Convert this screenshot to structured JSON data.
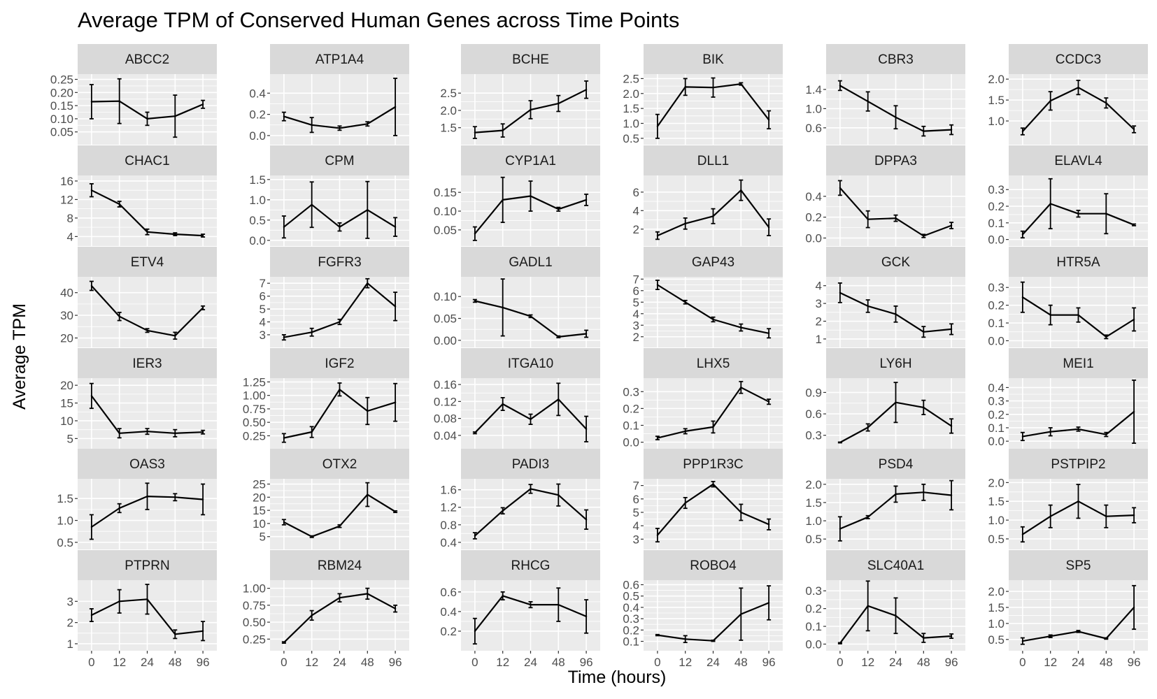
{
  "chart_data": {
    "type": "line",
    "title": "Average TPM of Conserved Human Genes across Time Points",
    "xlabel": "Time (hours)",
    "ylabel": "Average TPM",
    "x": [
      "0",
      "12",
      "24",
      "48",
      "96"
    ],
    "grid": true,
    "layout": "facet-wrap 6 columns x 6 rows",
    "colors": {
      "panel_bg": "#ebebeb",
      "strip_bg": "#d9d9d9",
      "grid": "#ffffff",
      "line": "#000000",
      "tick_text": "#4d4d4d"
    },
    "panels": [
      {
        "name": "ABCC2",
        "ylim": [
          0.02,
          0.27
        ],
        "yticks": [
          0.05,
          0.1,
          0.15,
          0.2,
          0.25
        ],
        "ytick_labels": [
          "0.05",
          "0.10",
          "0.15",
          "0.20",
          "0.25"
        ],
        "values": [
          0.165,
          0.167,
          0.1,
          0.11,
          0.155
        ],
        "err": [
          0.065,
          0.085,
          0.025,
          0.08,
          0.015
        ]
      },
      {
        "name": "ATP1A4",
        "ylim": [
          -0.04,
          0.58
        ],
        "yticks": [
          0.0,
          0.2,
          0.4
        ],
        "ytick_labels": [
          "0.0",
          "0.2",
          "0.4"
        ],
        "values": [
          0.18,
          0.1,
          0.07,
          0.11,
          0.27
        ],
        "err": [
          0.04,
          0.07,
          0.02,
          0.02,
          0.27
        ]
      },
      {
        "name": "BCHE",
        "ylim": [
          1.15,
          3.05
        ],
        "yticks": [
          1.5,
          2.0,
          2.5
        ],
        "ytick_labels": [
          "1.5",
          "2.0",
          "2.5"
        ],
        "values": [
          1.36,
          1.42,
          2.02,
          2.2,
          2.6
        ],
        "err": [
          0.17,
          0.19,
          0.26,
          0.23,
          0.25
        ]
      },
      {
        "name": "BIK",
        "ylim": [
          0.45,
          2.65
        ],
        "yticks": [
          0.5,
          1.0,
          1.5,
          2.0,
          2.5
        ],
        "ytick_labels": [
          "0.5",
          "1.0",
          "1.5",
          "2.0",
          "2.5"
        ],
        "values": [
          0.9,
          2.22,
          2.2,
          2.32,
          1.12
        ],
        "err": [
          0.4,
          0.28,
          0.32,
          0.04,
          0.3
        ]
      },
      {
        "name": "CBR3",
        "ylim": [
          0.35,
          1.72
        ],
        "yticks": [
          0.6,
          1.0,
          1.4
        ],
        "ytick_labels": [
          "0.6",
          "1.0",
          "1.4"
        ],
        "values": [
          1.48,
          1.15,
          0.82,
          0.53,
          0.56
        ],
        "err": [
          0.1,
          0.2,
          0.24,
          0.1,
          0.1
        ]
      },
      {
        "name": "CCDC3",
        "ylim": [
          0.55,
          2.12
        ],
        "yticks": [
          1.0,
          1.5,
          2.0
        ],
        "ytick_labels": [
          "1.0",
          "1.5",
          "2.0"
        ],
        "values": [
          0.75,
          1.48,
          1.8,
          1.43,
          0.8
        ],
        "err": [
          0.08,
          0.22,
          0.17,
          0.12,
          0.08
        ]
      },
      {
        "name": "CHAC1",
        "ylim": [
          3.0,
          17.2
        ],
        "yticks": [
          4,
          8,
          12,
          16
        ],
        "ytick_labels": [
          "4",
          "8",
          "12",
          "16"
        ],
        "values": [
          14.0,
          11.0,
          5.0,
          4.5,
          4.2
        ],
        "err": [
          1.4,
          0.6,
          0.6,
          0.3,
          0.3
        ]
      },
      {
        "name": "CPM",
        "ylim": [
          -0.02,
          1.6
        ],
        "yticks": [
          0.0,
          0.5,
          1.0,
          1.5
        ],
        "ytick_labels": [
          "0.0",
          "0.5",
          "1.0",
          "1.5"
        ],
        "values": [
          0.33,
          0.88,
          0.33,
          0.75,
          0.33
        ],
        "err": [
          0.27,
          0.56,
          0.1,
          0.7,
          0.23
        ]
      },
      {
        "name": "CYP1A1",
        "ylim": [
          0.02,
          0.195
        ],
        "yticks": [
          0.05,
          0.1,
          0.15
        ],
        "ytick_labels": [
          "0.05",
          "0.10",
          "0.15"
        ],
        "values": [
          0.04,
          0.13,
          0.14,
          0.105,
          0.13
        ],
        "err": [
          0.018,
          0.06,
          0.04,
          0.005,
          0.015
        ]
      },
      {
        "name": "DLL1",
        "ylim": [
          0.7,
          7.8
        ],
        "yticks": [
          2,
          4,
          6
        ],
        "ytick_labels": [
          "2",
          "4",
          "6"
        ],
        "values": [
          1.3,
          2.6,
          3.4,
          6.2,
          2.2
        ],
        "err": [
          0.4,
          0.6,
          0.8,
          1.1,
          0.9
        ]
      },
      {
        "name": "DPPA3",
        "ylim": [
          -0.03,
          0.6
        ],
        "yticks": [
          0.0,
          0.2,
          0.4
        ],
        "ytick_labels": [
          "0.0",
          "0.2",
          "0.4"
        ],
        "values": [
          0.48,
          0.18,
          0.19,
          0.02,
          0.12
        ],
        "err": [
          0.07,
          0.08,
          0.03,
          0.015,
          0.03
        ]
      },
      {
        "name": "ELAVL4",
        "ylim": [
          -0.01,
          0.385
        ],
        "yticks": [
          0.0,
          0.1,
          0.2,
          0.3
        ],
        "ytick_labels": [
          "0.0",
          "0.1",
          "0.2",
          "0.3"
        ],
        "values": [
          0.03,
          0.215,
          0.155,
          0.155,
          0.088
        ],
        "err": [
          0.02,
          0.15,
          0.02,
          0.12,
          0.005
        ]
      },
      {
        "name": "ETV4",
        "ylim": [
          18.0,
          47.0
        ],
        "yticks": [
          20,
          30,
          40
        ],
        "ytick_labels": [
          "20",
          "30",
          "40"
        ],
        "values": [
          43.0,
          29.5,
          23.3,
          21.0,
          33.3
        ],
        "err": [
          2.0,
          1.8,
          0.8,
          1.5,
          0.8
        ]
      },
      {
        "name": "FGFR3",
        "ylim": [
          2.4,
          7.5
        ],
        "yticks": [
          3,
          4,
          5,
          6,
          7
        ],
        "ytick_labels": [
          "3",
          "4",
          "5",
          "6",
          "7"
        ],
        "values": [
          2.8,
          3.2,
          4.0,
          7.0,
          5.2
        ],
        "err": [
          0.2,
          0.3,
          0.2,
          0.35,
          1.1
        ]
      },
      {
        "name": "GADL1",
        "ylim": [
          -0.005,
          0.145
        ],
        "yticks": [
          0.0,
          0.05,
          0.1
        ],
        "ytick_labels": [
          "0.00",
          "0.05",
          "0.10"
        ],
        "values": [
          0.09,
          0.075,
          0.055,
          0.008,
          0.015
        ],
        "err": [
          0.003,
          0.065,
          0.003,
          0.002,
          0.008
        ]
      },
      {
        "name": "GAP43",
        "ylim": [
          1.5,
          7.2
        ],
        "yticks": [
          2,
          3,
          4,
          5,
          6,
          7
        ],
        "ytick_labels": [
          "2",
          "3",
          "4",
          "5",
          "6",
          "7"
        ],
        "values": [
          6.5,
          5.0,
          3.5,
          2.8,
          2.3
        ],
        "err": [
          0.4,
          0.15,
          0.2,
          0.3,
          0.4
        ]
      },
      {
        "name": "GCK",
        "ylim": [
          0.8,
          4.5
        ],
        "yticks": [
          1,
          2,
          3,
          4
        ],
        "ytick_labels": [
          "1",
          "2",
          "3",
          "4"
        ],
        "values": [
          3.6,
          2.85,
          2.4,
          1.4,
          1.55
        ],
        "err": [
          0.55,
          0.35,
          0.45,
          0.3,
          0.3
        ]
      },
      {
        "name": "HTR5A",
        "ylim": [
          -0.01,
          0.36
        ],
        "yticks": [
          0.0,
          0.1,
          0.2,
          0.3
        ],
        "ytick_labels": [
          "0.0",
          "0.1",
          "0.2",
          "0.3"
        ],
        "values": [
          0.245,
          0.145,
          0.145,
          0.022,
          0.12
        ],
        "err": [
          0.085,
          0.055,
          0.04,
          0.01,
          0.065
        ]
      },
      {
        "name": "IER3",
        "ylim": [
          3.5,
          22.0
        ],
        "yticks": [
          5,
          10,
          15,
          20
        ],
        "ytick_labels": [
          "5",
          "10",
          "15",
          "20"
        ],
        "values": [
          17.0,
          6.5,
          7.0,
          6.5,
          6.8
        ],
        "err": [
          3.5,
          1.3,
          0.8,
          1.0,
          0.5
        ]
      },
      {
        "name": "IGF2",
        "ylim": [
          0.1,
          1.32
        ],
        "yticks": [
          0.25,
          0.5,
          0.75,
          1.0,
          1.25
        ],
        "ytick_labels": [
          "0.25",
          "0.50",
          "0.75",
          "1.00",
          "1.25"
        ],
        "values": [
          0.21,
          0.32,
          1.11,
          0.71,
          0.87
        ],
        "err": [
          0.08,
          0.1,
          0.12,
          0.25,
          0.35
        ]
      },
      {
        "name": "ITGA10",
        "ylim": [
          0.02,
          0.175
        ],
        "yticks": [
          0.04,
          0.08,
          0.12,
          0.16
        ],
        "ytick_labels": [
          "0.04",
          "0.08",
          "0.12",
          "0.16"
        ],
        "values": [
          0.046,
          0.114,
          0.078,
          0.125,
          0.055
        ],
        "err": [
          0.002,
          0.015,
          0.012,
          0.038,
          0.03
        ]
      },
      {
        "name": "LHX5",
        "ylim": [
          -0.01,
          0.38
        ],
        "yticks": [
          0.0,
          0.1,
          0.2,
          0.3
        ],
        "ytick_labels": [
          "0.0",
          "0.1",
          "0.2",
          "0.3"
        ],
        "values": [
          0.025,
          0.065,
          0.09,
          0.325,
          0.24
        ],
        "err": [
          0.01,
          0.015,
          0.035,
          0.035,
          0.015
        ]
      },
      {
        "name": "LY6H",
        "ylim": [
          0.18,
          1.1
        ],
        "yticks": [
          0.3,
          0.6,
          0.9
        ],
        "ytick_labels": [
          "0.3",
          "0.6",
          "0.9"
        ],
        "values": [
          0.2,
          0.41,
          0.76,
          0.69,
          0.43
        ],
        "err": [
          0.005,
          0.05,
          0.28,
          0.1,
          0.1
        ]
      },
      {
        "name": "MEI1",
        "ylim": [
          -0.02,
          0.47
        ],
        "yticks": [
          0.0,
          0.1,
          0.2,
          0.3,
          0.4
        ],
        "ytick_labels": [
          "0.0",
          "0.1",
          "0.2",
          "0.3",
          "0.4"
        ],
        "values": [
          0.035,
          0.07,
          0.09,
          0.05,
          0.22
        ],
        "err": [
          0.03,
          0.03,
          0.015,
          0.015,
          0.235
        ]
      },
      {
        "name": "OAS3",
        "ylim": [
          0.45,
          1.95
        ],
        "yticks": [
          0.5,
          1.0,
          1.5
        ],
        "ytick_labels": [
          "0.5",
          "1.0",
          "1.5"
        ],
        "values": [
          0.85,
          1.28,
          1.55,
          1.53,
          1.48
        ],
        "err": [
          0.28,
          0.1,
          0.3,
          0.08,
          0.35
        ]
      },
      {
        "name": "OTX2",
        "ylim": [
          2.0,
          27.0
        ],
        "yticks": [
          5,
          10,
          15,
          20,
          25
        ],
        "ytick_labels": [
          "5",
          "10",
          "15",
          "20",
          "25"
        ],
        "values": [
          10.5,
          5.0,
          9.0,
          21.0,
          14.5
        ],
        "err": [
          1.0,
          0.3,
          0.5,
          4.5,
          0.3
        ]
      },
      {
        "name": "PADI3",
        "ylim": [
          0.35,
          1.85
        ],
        "yticks": [
          0.4,
          0.8,
          1.2,
          1.6
        ],
        "ytick_labels": [
          "0.4",
          "0.8",
          "1.2",
          "1.6"
        ],
        "values": [
          0.55,
          1.12,
          1.62,
          1.48,
          0.92
        ],
        "err": [
          0.07,
          0.07,
          0.1,
          0.25,
          0.22
        ]
      },
      {
        "name": "PPP1R3C",
        "ylim": [
          2.6,
          7.5
        ],
        "yticks": [
          3,
          4,
          5,
          6,
          7
        ],
        "ytick_labels": [
          "3",
          "4",
          "5",
          "6",
          "7"
        ],
        "values": [
          3.3,
          5.7,
          7.1,
          5.0,
          4.1
        ],
        "err": [
          0.5,
          0.4,
          0.2,
          0.6,
          0.4
        ]
      },
      {
        "name": "PSD4",
        "ylim": [
          0.35,
          2.15
        ],
        "yticks": [
          0.5,
          1.0,
          1.5,
          2.0
        ],
        "ytick_labels": [
          "0.5",
          "1.0",
          "1.5",
          "2.0"
        ],
        "values": [
          0.78,
          1.1,
          1.73,
          1.78,
          1.7
        ],
        "err": [
          0.33,
          0.04,
          0.22,
          0.22,
          0.4
        ]
      },
      {
        "name": "PSTPIP2",
        "ylim": [
          0.35,
          2.1
        ],
        "yticks": [
          0.5,
          1.0,
          1.5,
          2.0
        ],
        "ytick_labels": [
          "0.5",
          "1.0",
          "1.5",
          "2.0"
        ],
        "values": [
          0.62,
          1.1,
          1.5,
          1.1,
          1.13
        ],
        "err": [
          0.2,
          0.3,
          0.45,
          0.3,
          0.2
        ]
      },
      {
        "name": "PTPRN",
        "ylim": [
          0.9,
          4.0
        ],
        "yticks": [
          1,
          2,
          3
        ],
        "ytick_labels": [
          "1",
          "2",
          "3"
        ],
        "values": [
          2.35,
          3.0,
          3.1,
          1.45,
          1.6
        ],
        "err": [
          0.3,
          0.55,
          0.7,
          0.2,
          0.45
        ]
      },
      {
        "name": "RBM24",
        "ylim": [
          0.15,
          1.12
        ],
        "yticks": [
          0.25,
          0.5,
          0.75,
          1.0
        ],
        "ytick_labels": [
          "0.25",
          "0.50",
          "0.75",
          "1.00"
        ],
        "values": [
          0.2,
          0.6,
          0.86,
          0.92,
          0.7
        ],
        "err": [
          0.01,
          0.07,
          0.06,
          0.08,
          0.05
        ]
      },
      {
        "name": "RHCG",
        "ylim": [
          0.05,
          0.72
        ],
        "yticks": [
          0.2,
          0.4,
          0.6
        ],
        "ytick_labels": [
          "0.2",
          "0.4",
          "0.6"
        ],
        "values": [
          0.2,
          0.56,
          0.47,
          0.47,
          0.35
        ],
        "err": [
          0.13,
          0.04,
          0.03,
          0.17,
          0.17
        ]
      },
      {
        "name": "ROBO4",
        "ylim": [
          0.06,
          0.64
        ],
        "yticks": [
          0.1,
          0.2,
          0.3,
          0.4,
          0.5,
          0.6
        ],
        "ytick_labels": [
          "0.1",
          "0.2",
          "0.3",
          "0.4",
          "0.5",
          "0.6"
        ],
        "values": [
          0.155,
          0.12,
          0.105,
          0.34,
          0.44
        ],
        "err": [
          0.005,
          0.03,
          0.005,
          0.23,
          0.15
        ]
      },
      {
        "name": "SLC40A1",
        "ylim": [
          -0.01,
          0.36
        ],
        "yticks": [
          0.0,
          0.1,
          0.2,
          0.3
        ],
        "ytick_labels": [
          "0.0",
          "0.1",
          "0.2",
          "0.3"
        ],
        "values": [
          0.005,
          0.215,
          0.16,
          0.035,
          0.045
        ],
        "err": [
          0.003,
          0.14,
          0.1,
          0.025,
          0.012
        ]
      },
      {
        "name": "SP5",
        "ylim": [
          0.3,
          2.35
        ],
        "yticks": [
          0.5,
          1.0,
          1.5,
          2.0
        ],
        "ytick_labels": [
          "0.5",
          "1.0",
          "1.5",
          "2.0"
        ],
        "values": [
          0.45,
          0.6,
          0.75,
          0.53,
          1.5
        ],
        "err": [
          0.1,
          0.04,
          0.03,
          0.02,
          0.68
        ]
      }
    ]
  }
}
